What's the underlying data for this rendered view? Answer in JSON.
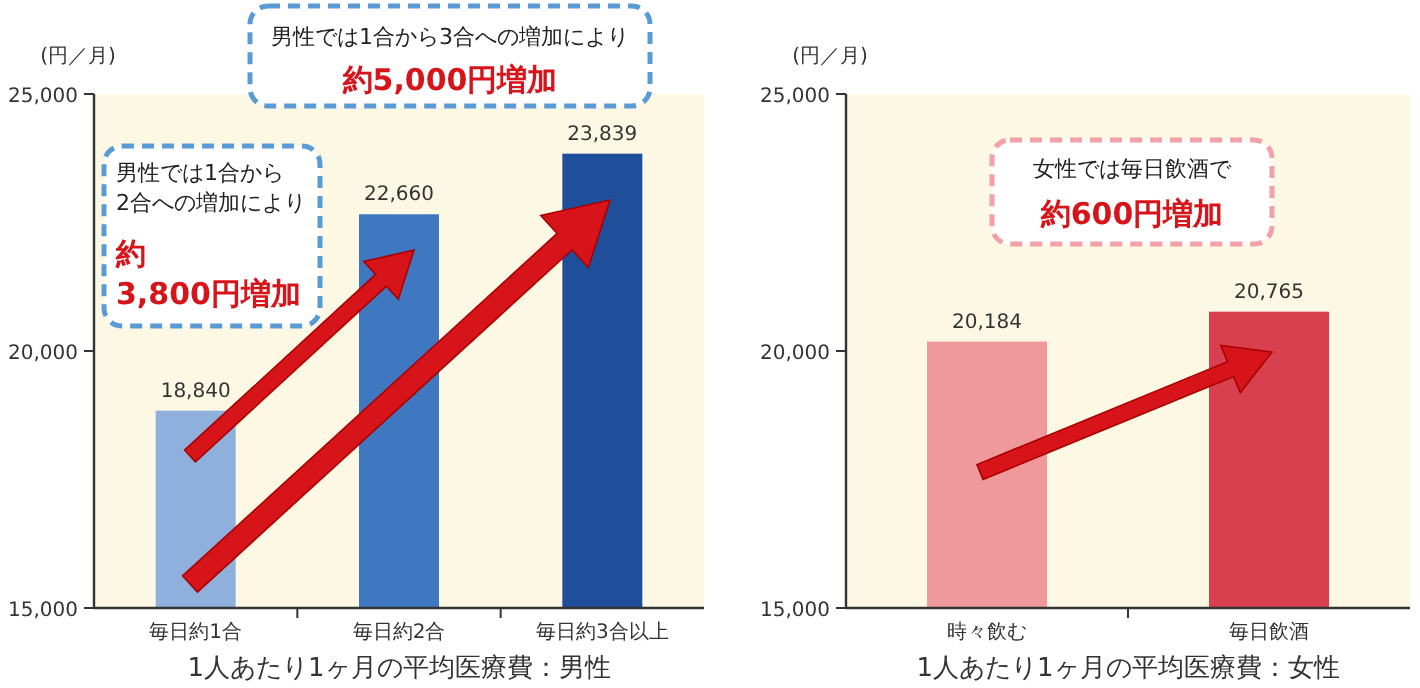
{
  "chart_data": [
    {
      "type": "bar",
      "ylabel": "(円／月)",
      "xlabel": "1人あたり1ヶ月の平均医療費：男性",
      "categories": [
        "毎日約1合",
        "毎日約2合",
        "毎日約3合以上"
      ],
      "values": [
        18840,
        22660,
        23839
      ],
      "colors": [
        "#8fb0dc",
        "#3f78c0",
        "#1f4f9a"
      ],
      "value_labels": [
        "18,840",
        "22,660",
        "23,839"
      ],
      "ylim": [
        15000,
        25000
      ],
      "yticks": [
        {
          "value": 15000,
          "label": "15,000"
        },
        {
          "value": 20000,
          "label": "20,000"
        },
        {
          "value": 25000,
          "label": "25,000"
        }
      ],
      "annotations": [
        "男性では1合から2合への増加により",
        "約3,800円増加",
        "男性では1合から3合への増加により",
        "約5,000円増加"
      ]
    },
    {
      "type": "bar",
      "ylabel": "(円／月)",
      "xlabel": "1人あたり1ヶ月の平均医療費：女性",
      "categories": [
        "時々飲む",
        "毎日飲酒"
      ],
      "values": [
        20184,
        20765
      ],
      "colors": [
        "#f0999c",
        "#d8404f"
      ],
      "value_labels": [
        "20,184",
        "20,765"
      ],
      "ylim": [
        15000,
        25000
      ],
      "yticks": [
        {
          "value": 15000,
          "label": "15,000"
        },
        {
          "value": 20000,
          "label": "20,000"
        },
        {
          "value": 25000,
          "label": "25,000"
        }
      ],
      "annotations": [
        "女性では毎日飲酒で",
        "約600円増加"
      ]
    }
  ]
}
